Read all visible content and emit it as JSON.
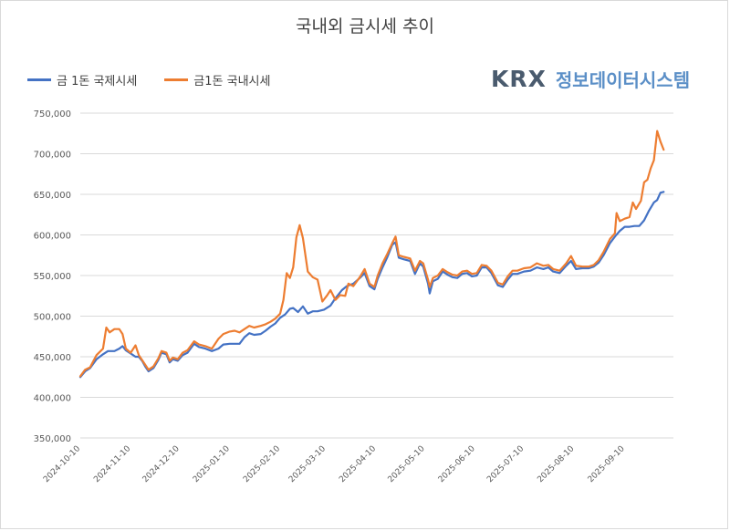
{
  "title": "국내외 금시세 추이",
  "logo": {
    "mark": "KRX",
    "text": "정보데이터시스템"
  },
  "chart_data": {
    "type": "line",
    "title": "국내외 금시세 추이",
    "xlabel": "",
    "ylabel": "",
    "ylim": [
      350000,
      750000
    ],
    "yticks": [
      350000,
      400000,
      450000,
      500000,
      550000,
      600000,
      650000,
      700000,
      750000
    ],
    "ytick_labels": [
      "350,000",
      "400,000",
      "450,000",
      "500,000",
      "550,000",
      "600,000",
      "650,000",
      "700,000",
      "750,000"
    ],
    "xlim": [
      "2024-10-10",
      "2025-10-10"
    ],
    "xticks": [
      "2024-10-10",
      "2024-11-10",
      "2024-12-10",
      "2025-01-10",
      "2025-02-10",
      "2025-03-10",
      "2025-04-10",
      "2025-05-10",
      "2025-06-10",
      "2025-07-10",
      "2025-08-10",
      "2025-09-10"
    ],
    "grid": "horizontal",
    "legend": "top-left",
    "series": [
      {
        "name": "금 1돈 국제시세",
        "color": "#4472c4",
        "points": [
          [
            "2024-10-10",
            425000
          ],
          [
            "2024-10-13",
            432000
          ],
          [
            "2024-10-16",
            436000
          ],
          [
            "2024-10-20",
            447000
          ],
          [
            "2024-10-24",
            453000
          ],
          [
            "2024-10-27",
            457000
          ],
          [
            "2024-10-31",
            457000
          ],
          [
            "2024-11-03",
            460000
          ],
          [
            "2024-11-05",
            463000
          ],
          [
            "2024-11-07",
            458000
          ],
          [
            "2024-11-10",
            454000
          ],
          [
            "2024-11-13",
            450000
          ],
          [
            "2024-11-15",
            450000
          ],
          [
            "2024-11-17",
            445000
          ],
          [
            "2024-11-19",
            438000
          ],
          [
            "2024-11-21",
            432000
          ],
          [
            "2024-11-24",
            436000
          ],
          [
            "2024-11-27",
            446000
          ],
          [
            "2024-11-29",
            455000
          ],
          [
            "2024-12-02",
            453000
          ],
          [
            "2024-12-04",
            443000
          ],
          [
            "2024-12-06",
            447000
          ],
          [
            "2024-12-09",
            445000
          ],
          [
            "2024-12-12",
            452000
          ],
          [
            "2024-12-15",
            455000
          ],
          [
            "2024-12-19",
            466000
          ],
          [
            "2024-12-22",
            462000
          ],
          [
            "2024-12-26",
            460000
          ],
          [
            "2024-12-30",
            457000
          ],
          [
            "2025-01-03",
            460000
          ],
          [
            "2025-01-06",
            465000
          ],
          [
            "2025-01-10",
            466000
          ],
          [
            "2025-01-13",
            466000
          ],
          [
            "2025-01-16",
            466000
          ],
          [
            "2025-01-19",
            474000
          ],
          [
            "2025-01-22",
            479000
          ],
          [
            "2025-01-25",
            477000
          ],
          [
            "2025-01-29",
            478000
          ],
          [
            "2025-02-01",
            482000
          ],
          [
            "2025-02-04",
            487000
          ],
          [
            "2025-02-07",
            491000
          ],
          [
            "2025-02-10",
            498000
          ],
          [
            "2025-02-13",
            502000
          ],
          [
            "2025-02-16",
            509000
          ],
          [
            "2025-02-18",
            510000
          ],
          [
            "2025-02-21",
            505000
          ],
          [
            "2025-02-24",
            512000
          ],
          [
            "2025-02-27",
            503000
          ],
          [
            "2025-03-02",
            506000
          ],
          [
            "2025-03-05",
            506000
          ],
          [
            "2025-03-09",
            508000
          ],
          [
            "2025-03-13",
            513000
          ],
          [
            "2025-03-16",
            522000
          ],
          [
            "2025-03-20",
            532000
          ],
          [
            "2025-03-23",
            537000
          ],
          [
            "2025-03-27",
            540000
          ],
          [
            "2025-03-31",
            547000
          ],
          [
            "2025-04-03",
            553000
          ],
          [
            "2025-04-06",
            537000
          ],
          [
            "2025-04-09",
            533000
          ],
          [
            "2025-04-11",
            546000
          ],
          [
            "2025-04-14",
            560000
          ],
          [
            "2025-04-17",
            573000
          ],
          [
            "2025-04-20",
            588000
          ],
          [
            "2025-04-22",
            591000
          ],
          [
            "2025-04-24",
            572000
          ],
          [
            "2025-04-27",
            570000
          ],
          [
            "2025-05-01",
            568000
          ],
          [
            "2025-05-04",
            552000
          ],
          [
            "2025-05-07",
            565000
          ],
          [
            "2025-05-09",
            561000
          ],
          [
            "2025-05-12",
            540000
          ],
          [
            "2025-05-13",
            528000
          ],
          [
            "2025-05-15",
            543000
          ],
          [
            "2025-05-18",
            546000
          ],
          [
            "2025-05-21",
            555000
          ],
          [
            "2025-05-24",
            551000
          ],
          [
            "2025-05-27",
            548000
          ],
          [
            "2025-05-30",
            547000
          ],
          [
            "2025-06-02",
            552000
          ],
          [
            "2025-06-05",
            553000
          ],
          [
            "2025-06-08",
            549000
          ],
          [
            "2025-06-11",
            550000
          ],
          [
            "2025-06-14",
            560000
          ],
          [
            "2025-06-17",
            560000
          ],
          [
            "2025-06-20",
            553000
          ],
          [
            "2025-06-24",
            538000
          ],
          [
            "2025-06-27",
            536000
          ],
          [
            "2025-06-30",
            545000
          ],
          [
            "2025-07-03",
            552000
          ],
          [
            "2025-07-06",
            552000
          ],
          [
            "2025-07-10",
            555000
          ],
          [
            "2025-07-14",
            556000
          ],
          [
            "2025-07-18",
            560000
          ],
          [
            "2025-07-22",
            558000
          ],
          [
            "2025-07-25",
            560000
          ],
          [
            "2025-07-28",
            555000
          ],
          [
            "2025-08-01",
            553000
          ],
          [
            "2025-08-05",
            562000
          ],
          [
            "2025-08-08",
            568000
          ],
          [
            "2025-08-11",
            558000
          ],
          [
            "2025-08-15",
            559000
          ],
          [
            "2025-08-19",
            559000
          ],
          [
            "2025-08-22",
            561000
          ],
          [
            "2025-08-25",
            566000
          ],
          [
            "2025-08-28",
            575000
          ],
          [
            "2025-09-01",
            590000
          ],
          [
            "2025-09-04",
            598000
          ],
          [
            "2025-09-07",
            605000
          ],
          [
            "2025-09-10",
            610000
          ],
          [
            "2025-09-13",
            610000
          ],
          [
            "2025-09-16",
            611000
          ],
          [
            "2025-09-19",
            611000
          ],
          [
            "2025-09-22",
            618000
          ],
          [
            "2025-09-25",
            630000
          ],
          [
            "2025-09-28",
            640000
          ],
          [
            "2025-09-30",
            643000
          ],
          [
            "2025-10-02",
            652000
          ],
          [
            "2025-10-04",
            653000
          ]
        ]
      },
      {
        "name": "금1돈 국내시세",
        "color": "#ed7d31",
        "points": [
          [
            "2024-10-10",
            426000
          ],
          [
            "2024-10-13",
            434000
          ],
          [
            "2024-10-16",
            437000
          ],
          [
            "2024-10-20",
            452000
          ],
          [
            "2024-10-24",
            460000
          ],
          [
            "2024-10-26",
            486000
          ],
          [
            "2024-10-28",
            480000
          ],
          [
            "2024-10-31",
            484000
          ],
          [
            "2024-11-03",
            484000
          ],
          [
            "2024-11-05",
            478000
          ],
          [
            "2024-11-07",
            460000
          ],
          [
            "2024-11-10",
            455000
          ],
          [
            "2024-11-13",
            464000
          ],
          [
            "2024-11-15",
            452000
          ],
          [
            "2024-11-17",
            446000
          ],
          [
            "2024-11-19",
            440000
          ],
          [
            "2024-11-21",
            434000
          ],
          [
            "2024-11-24",
            438000
          ],
          [
            "2024-11-27",
            448000
          ],
          [
            "2024-11-29",
            457000
          ],
          [
            "2024-12-02",
            455000
          ],
          [
            "2024-12-04",
            445000
          ],
          [
            "2024-12-06",
            449000
          ],
          [
            "2024-12-09",
            447000
          ],
          [
            "2024-12-12",
            455000
          ],
          [
            "2024-12-15",
            458000
          ],
          [
            "2024-12-19",
            469000
          ],
          [
            "2024-12-22",
            465000
          ],
          [
            "2024-12-26",
            463000
          ],
          [
            "2024-12-30",
            460000
          ],
          [
            "2025-01-03",
            472000
          ],
          [
            "2025-01-06",
            478000
          ],
          [
            "2025-01-10",
            481000
          ],
          [
            "2025-01-13",
            482000
          ],
          [
            "2025-01-16",
            480000
          ],
          [
            "2025-01-19",
            484000
          ],
          [
            "2025-01-22",
            488000
          ],
          [
            "2025-01-25",
            486000
          ],
          [
            "2025-01-29",
            488000
          ],
          [
            "2025-02-01",
            490000
          ],
          [
            "2025-02-04",
            493000
          ],
          [
            "2025-02-07",
            497000
          ],
          [
            "2025-02-10",
            503000
          ],
          [
            "2025-02-12",
            520000
          ],
          [
            "2025-02-14",
            553000
          ],
          [
            "2025-02-16",
            547000
          ],
          [
            "2025-02-18",
            560000
          ],
          [
            "2025-02-20",
            597000
          ],
          [
            "2025-02-22",
            612000
          ],
          [
            "2025-02-24",
            596000
          ],
          [
            "2025-02-27",
            555000
          ],
          [
            "2025-03-02",
            548000
          ],
          [
            "2025-03-05",
            545000
          ],
          [
            "2025-03-08",
            518000
          ],
          [
            "2025-03-11",
            526000
          ],
          [
            "2025-03-13",
            532000
          ],
          [
            "2025-03-16",
            520000
          ],
          [
            "2025-03-19",
            526000
          ],
          [
            "2025-03-22",
            525000
          ],
          [
            "2025-03-24",
            540000
          ],
          [
            "2025-03-27",
            537000
          ],
          [
            "2025-03-31",
            548000
          ],
          [
            "2025-04-03",
            558000
          ],
          [
            "2025-04-06",
            540000
          ],
          [
            "2025-04-09",
            536000
          ],
          [
            "2025-04-11",
            550000
          ],
          [
            "2025-04-14",
            565000
          ],
          [
            "2025-04-17",
            577000
          ],
          [
            "2025-04-20",
            590000
          ],
          [
            "2025-04-22",
            598000
          ],
          [
            "2025-04-24",
            575000
          ],
          [
            "2025-04-27",
            573000
          ],
          [
            "2025-05-01",
            571000
          ],
          [
            "2025-05-04",
            556000
          ],
          [
            "2025-05-07",
            568000
          ],
          [
            "2025-05-09",
            565000
          ],
          [
            "2025-05-12",
            545000
          ],
          [
            "2025-05-13",
            536000
          ],
          [
            "2025-05-15",
            547000
          ],
          [
            "2025-05-18",
            550000
          ],
          [
            "2025-05-21",
            558000
          ],
          [
            "2025-05-24",
            554000
          ],
          [
            "2025-05-27",
            551000
          ],
          [
            "2025-05-30",
            550000
          ],
          [
            "2025-06-02",
            555000
          ],
          [
            "2025-06-05",
            556000
          ],
          [
            "2025-06-08",
            552000
          ],
          [
            "2025-06-11",
            553000
          ],
          [
            "2025-06-14",
            563000
          ],
          [
            "2025-06-17",
            562000
          ],
          [
            "2025-06-20",
            556000
          ],
          [
            "2025-06-24",
            541000
          ],
          [
            "2025-06-27",
            539000
          ],
          [
            "2025-06-30",
            549000
          ],
          [
            "2025-07-03",
            556000
          ],
          [
            "2025-07-06",
            556000
          ],
          [
            "2025-07-10",
            559000
          ],
          [
            "2025-07-14",
            560000
          ],
          [
            "2025-07-18",
            565000
          ],
          [
            "2025-07-22",
            562000
          ],
          [
            "2025-07-25",
            563000
          ],
          [
            "2025-07-28",
            558000
          ],
          [
            "2025-08-01",
            556000
          ],
          [
            "2025-08-05",
            565000
          ],
          [
            "2025-08-08",
            574000
          ],
          [
            "2025-08-11",
            562000
          ],
          [
            "2025-08-15",
            561000
          ],
          [
            "2025-08-19",
            561000
          ],
          [
            "2025-08-22",
            563000
          ],
          [
            "2025-08-25",
            569000
          ],
          [
            "2025-08-28",
            579000
          ],
          [
            "2025-09-01",
            595000
          ],
          [
            "2025-09-04",
            602000
          ],
          [
            "2025-09-05",
            627000
          ],
          [
            "2025-09-07",
            617000
          ],
          [
            "2025-09-10",
            620000
          ],
          [
            "2025-09-13",
            622000
          ],
          [
            "2025-09-15",
            640000
          ],
          [
            "2025-09-17",
            632000
          ],
          [
            "2025-09-20",
            642000
          ],
          [
            "2025-09-22",
            665000
          ],
          [
            "2025-09-24",
            668000
          ],
          [
            "2025-09-26",
            682000
          ],
          [
            "2025-09-28",
            692000
          ],
          [
            "2025-09-30",
            728000
          ],
          [
            "2025-10-02",
            715000
          ],
          [
            "2025-10-04",
            705000
          ]
        ]
      }
    ]
  }
}
